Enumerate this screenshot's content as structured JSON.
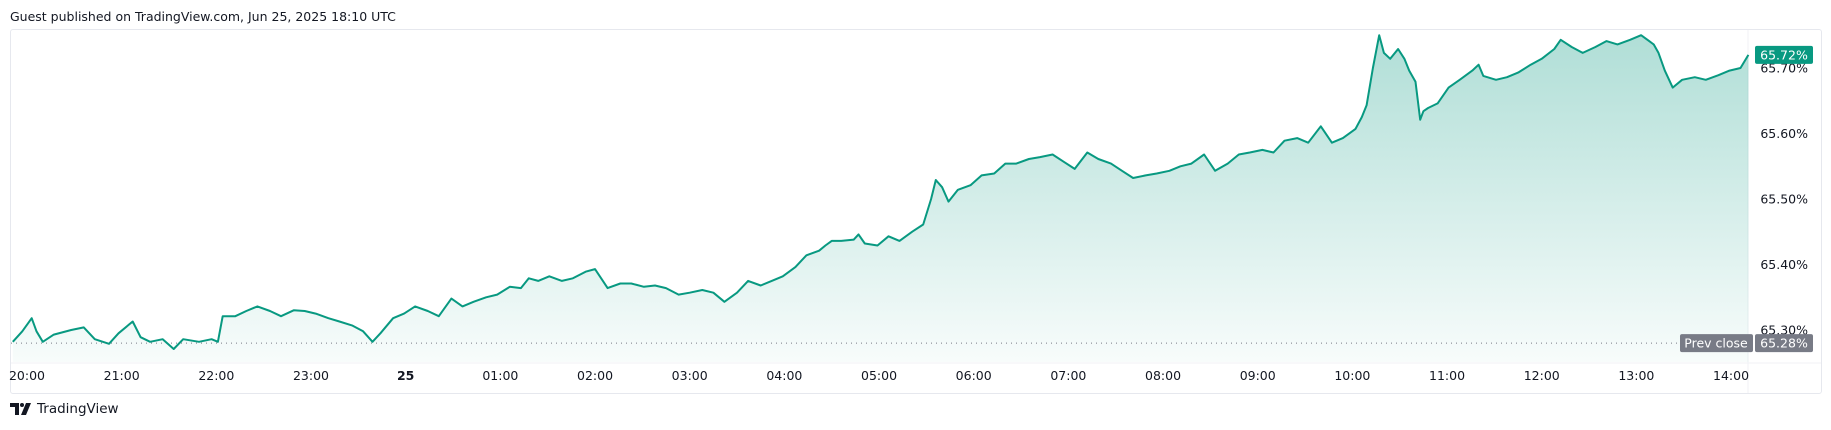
{
  "header": {
    "published": "Guest published on TradingView.com, Jun 25, 2025 18:10 UTC"
  },
  "branding": {
    "logo_text": "TradingView",
    "logo_icon": "tradingview-logo-icon"
  },
  "colors": {
    "line": "#089981",
    "last_tag": "#089981",
    "prev_close_tag": "#787b86",
    "axis_text": "#131722"
  },
  "chart_data": {
    "type": "area",
    "x_ticks": [
      "20:00",
      "21:00",
      "22:00",
      "23:00",
      "25",
      "01:00",
      "02:00",
      "03:00",
      "04:00",
      "05:00",
      "06:00",
      "07:00",
      "08:00",
      "09:00",
      "10:00",
      "11:00",
      "12:00",
      "13:00",
      "14:00"
    ],
    "y_ticks": [
      "65.30%",
      "65.40%",
      "65.50%",
      "65.60%",
      "65.70%"
    ],
    "ylim": [
      65.26,
      65.76
    ],
    "grid": false,
    "last_value": 65.72,
    "last_value_label": "65.72%",
    "prev_close": 65.28,
    "prev_close_title": "Prev close",
    "prev_close_label": "65.28%",
    "series": [
      {
        "x": [
          "19:51",
          "19:57",
          "20:03",
          "20:06",
          "20:10",
          "20:17",
          "20:28",
          "20:36",
          "20:43",
          "20:52",
          "20:58",
          "21:07",
          "21:12",
          "21:18",
          "21:26",
          "21:33",
          "21:39",
          "21:49",
          "21:57",
          "22:01",
          "22:04",
          "22:12",
          "22:19",
          "22:26",
          "22:34",
          "22:41",
          "22:49",
          "22:56",
          "23:03",
          "23:11",
          "23:18",
          "23:26",
          "23:33",
          "23:39",
          "23:44",
          "23:52",
          "23:59",
          "00:06",
          "00:14",
          "00:21",
          "00:29",
          "00:36",
          "00:43",
          "00:51",
          "00:58",
          "01:06",
          "01:13",
          "01:18",
          "01:24",
          "01:31",
          "01:39",
          "01:46",
          "01:54",
          "02:00",
          "02:05",
          "02:08",
          "02:16",
          "02:23",
          "02:31",
          "02:38",
          "02:45",
          "02:53",
          "03:00",
          "03:08",
          "03:15",
          "03:22",
          "03:30",
          "03:37",
          "03:45",
          "03:52",
          "03:59",
          "04:07",
          "04:14",
          "04:22",
          "04:26",
          "04:30",
          "04:36",
          "04:44",
          "04:47",
          "04:51",
          "04:59",
          "05:06",
          "05:13",
          "05:21",
          "05:28",
          "05:33",
          "05:36",
          "05:40",
          "05:44",
          "05:50",
          "05:58",
          "06:05",
          "06:13",
          "06:20",
          "06:27",
          "06:35",
          "06:42",
          "06:50",
          "06:57",
          "07:04",
          "07:12",
          "07:19",
          "07:27",
          "07:34",
          "07:41",
          "07:49",
          "07:56",
          "08:04",
          "08:11",
          "08:18",
          "08:26",
          "08:33",
          "08:41",
          "08:48",
          "08:55",
          "09:03",
          "09:10",
          "09:17",
          "09:25",
          "09:32",
          "09:40",
          "09:47",
          "09:54",
          "10:02",
          "10:06",
          "10:09",
          "10:13",
          "10:17",
          "10:20",
          "10:24",
          "10:29",
          "10:33",
          "10:36",
          "10:40",
          "10:43",
          "10:45",
          "10:48",
          "10:54",
          "11:01",
          "11:08",
          "11:16",
          "11:20",
          "11:23",
          "11:31",
          "11:38",
          "11:45",
          "11:53",
          "12:00",
          "12:08",
          "12:12",
          "12:19",
          "12:26",
          "12:34",
          "12:41",
          "12:48",
          "12:56",
          "13:03",
          "13:11",
          "13:14",
          "13:18",
          "13:23",
          "13:29",
          "13:37",
          "13:44",
          "13:52",
          "13:59",
          "14:06",
          "14:11"
        ],
        "y": [
          65.282,
          65.298,
          65.318,
          65.298,
          65.282,
          65.293,
          65.3,
          65.304,
          65.286,
          65.279,
          65.295,
          65.313,
          65.289,
          65.282,
          65.286,
          65.271,
          65.286,
          65.282,
          65.286,
          65.282,
          65.321,
          65.321,
          65.329,
          65.336,
          65.329,
          65.321,
          65.33,
          65.329,
          65.325,
          65.318,
          65.313,
          65.307,
          65.298,
          65.282,
          65.295,
          65.318,
          65.325,
          65.336,
          65.329,
          65.321,
          65.348,
          65.336,
          65.343,
          65.35,
          65.354,
          65.366,
          65.364,
          65.379,
          65.375,
          65.382,
          65.375,
          65.379,
          65.389,
          65.393,
          65.375,
          65.364,
          65.371,
          65.371,
          65.366,
          65.368,
          65.364,
          65.354,
          65.357,
          65.361,
          65.357,
          65.343,
          65.357,
          65.375,
          65.368,
          65.375,
          65.382,
          65.396,
          65.414,
          65.421,
          65.429,
          65.436,
          65.436,
          65.438,
          65.446,
          65.432,
          65.429,
          65.443,
          65.436,
          65.45,
          65.461,
          65.5,
          65.529,
          65.518,
          65.496,
          65.514,
          65.521,
          65.536,
          65.539,
          65.554,
          65.554,
          65.561,
          65.564,
          65.568,
          65.557,
          65.546,
          65.571,
          65.561,
          65.554,
          65.543,
          65.532,
          65.536,
          65.539,
          65.543,
          65.55,
          65.554,
          65.568,
          65.543,
          65.554,
          65.568,
          65.571,
          65.575,
          65.571,
          65.589,
          65.593,
          65.586,
          65.611,
          65.586,
          65.593,
          65.607,
          65.625,
          65.643,
          65.7,
          65.75,
          65.723,
          65.714,
          65.729,
          65.714,
          65.696,
          65.679,
          65.621,
          65.634,
          65.639,
          65.646,
          65.67,
          65.682,
          65.696,
          65.705,
          65.688,
          65.682,
          65.686,
          65.693,
          65.705,
          65.714,
          65.729,
          65.743,
          65.732,
          65.723,
          65.732,
          65.741,
          65.736,
          65.743,
          65.75,
          65.736,
          65.723,
          65.696,
          65.67,
          65.682,
          65.686,
          65.682,
          65.689,
          65.696,
          65.7,
          65.72
        ]
      }
    ]
  }
}
